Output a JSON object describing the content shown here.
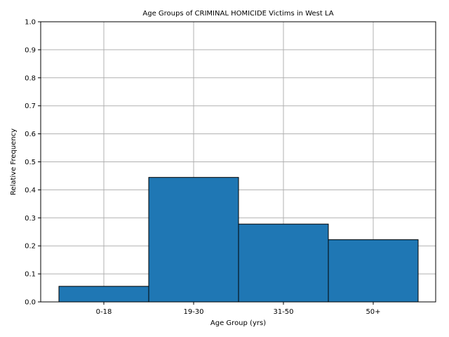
{
  "chart_data": {
    "type": "bar",
    "title": "Age Groups of CRIMINAL HOMICIDE Victims in West LA",
    "xlabel": "Age Group (yrs)",
    "ylabel": "Relative Frequency",
    "categories": [
      "0-18",
      "19-30",
      "31-50",
      "50+"
    ],
    "values": [
      0.0556,
      0.4444,
      0.2778,
      0.2222
    ],
    "ylim": [
      0,
      1.0
    ],
    "yticks": [
      "0.0",
      "0.1",
      "0.2",
      "0.3",
      "0.4",
      "0.5",
      "0.6",
      "0.7",
      "0.8",
      "0.9",
      "1.0"
    ],
    "grid": true,
    "bar_color": "#1f77b4",
    "edge_color": "#000000",
    "grid_color": "#b0b0b0"
  }
}
